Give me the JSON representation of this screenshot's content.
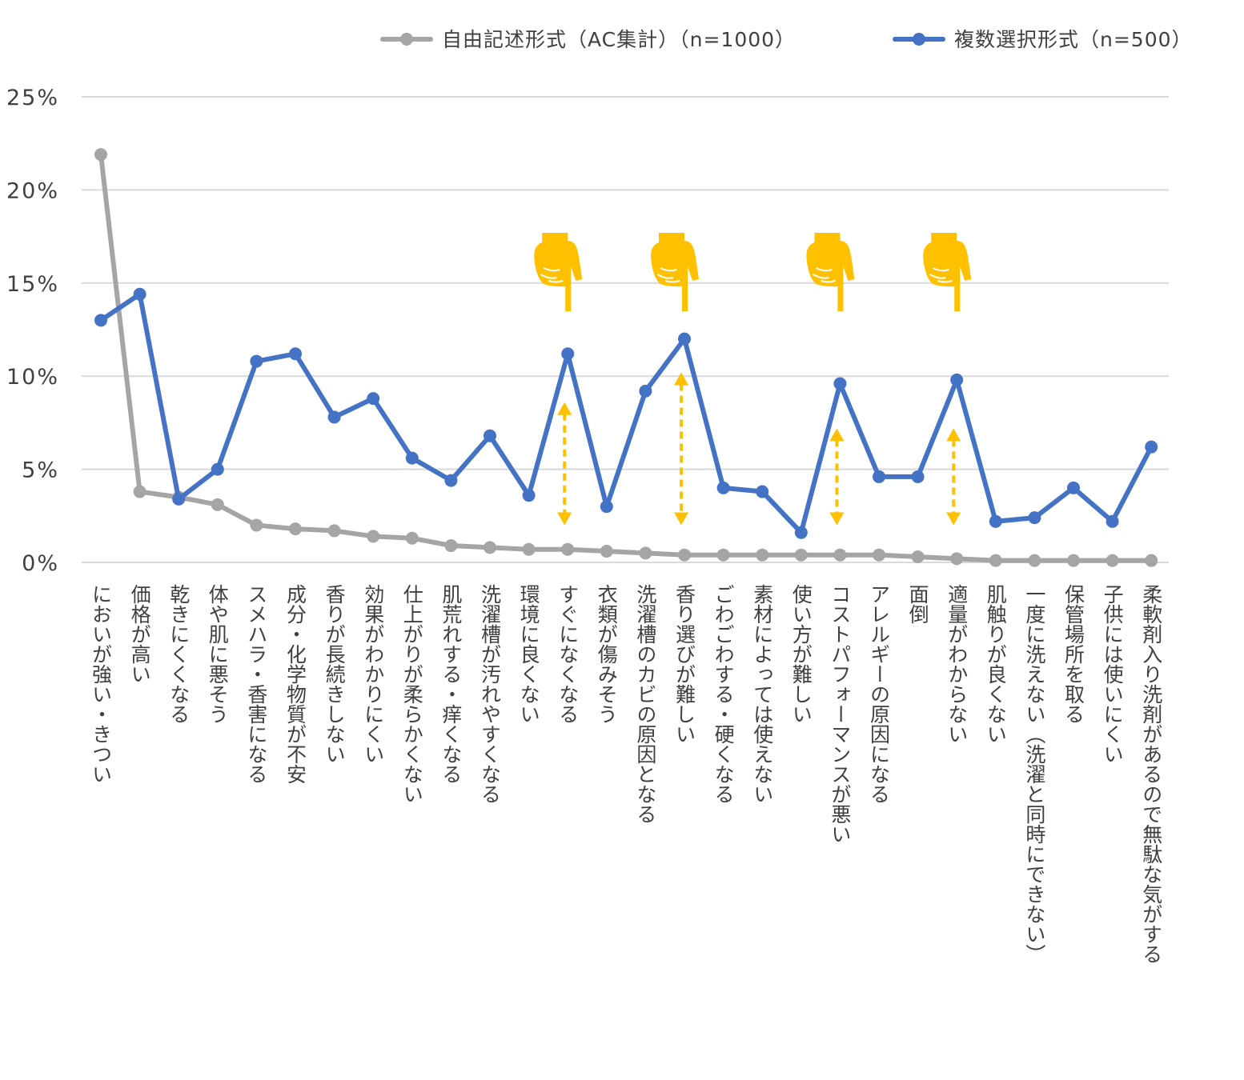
{
  "chart_data": {
    "type": "line",
    "categories": [
      "においが強い・きつい",
      "価格が高い",
      "乾きにくくなる",
      "体や肌に悪そう",
      "スメハラ・香害になる",
      "成分・化学物質が不安",
      "香りが長続きしない",
      "効果がわかりにくい",
      "仕上がりが柔らかくない",
      "肌荒れする・痒くなる",
      "洗濯槽が汚れやすくなる",
      "環境に良くない",
      "すぐになくなる",
      "衣類が傷みそう",
      "洗濯槽のカビの原因となる",
      "香り選びが難しい",
      "ごわごわする・硬くなる",
      "素材によっては使えない",
      "使い方が難しい",
      "コストパフォーマンスが悪い",
      "アレルギーの原因になる",
      "面倒",
      "適量がわからない",
      "肌触りが良くない",
      "一度に洗えない（洗濯と同時にできない）",
      "保管場所を取る",
      "子供には使いにくい",
      "柔軟剤入り洗剤があるので無駄な気がする"
    ],
    "series": [
      {
        "name": "自由記述形式（AC集計）（n=1000）",
        "color": "#a5a5a5",
        "values": [
          21.9,
          3.8,
          3.5,
          3.1,
          2.0,
          1.8,
          1.7,
          1.4,
          1.3,
          0.9,
          0.8,
          0.7,
          0.7,
          0.6,
          0.5,
          0.4,
          0.4,
          0.4,
          0.4,
          0.4,
          0.4,
          0.3,
          0.2,
          0.1,
          0.1,
          0.1,
          0.1,
          0.1
        ]
      },
      {
        "name": "複数選択形式（n=500）",
        "color": "#4472c4",
        "values": [
          13.0,
          14.4,
          3.4,
          5.0,
          10.8,
          11.2,
          7.8,
          8.8,
          5.6,
          4.4,
          6.8,
          3.6,
          11.2,
          3.0,
          9.2,
          12.0,
          4.0,
          3.8,
          1.6,
          9.6,
          4.6,
          4.6,
          9.8,
          2.2,
          2.4,
          4.0,
          2.2,
          6.2
        ]
      }
    ],
    "y_ticks": [
      "0%",
      "5%",
      "10%",
      "15%",
      "20%",
      "25%"
    ],
    "ylim": [
      0,
      25
    ],
    "grid": true,
    "legend": "top-right",
    "annotations": {
      "color": "#ffc000",
      "highlighted_categories": [
        "すぐになくなる",
        "香り選びが難しい",
        "コストパフォーマンスが悪い",
        "適量がわからない"
      ],
      "icon": "pointing-hand-icon",
      "arrows": [
        {
          "category": "すぐになくなる",
          "from": 2.0,
          "to": 8.6
        },
        {
          "category": "香り選びが難しい",
          "from": 2.0,
          "to": 10.2
        },
        {
          "category": "コストパフォーマンスが悪い",
          "from": 2.0,
          "to": 7.2
        },
        {
          "category": "適量がわからない",
          "from": 2.0,
          "to": 7.2
        }
      ]
    }
  }
}
